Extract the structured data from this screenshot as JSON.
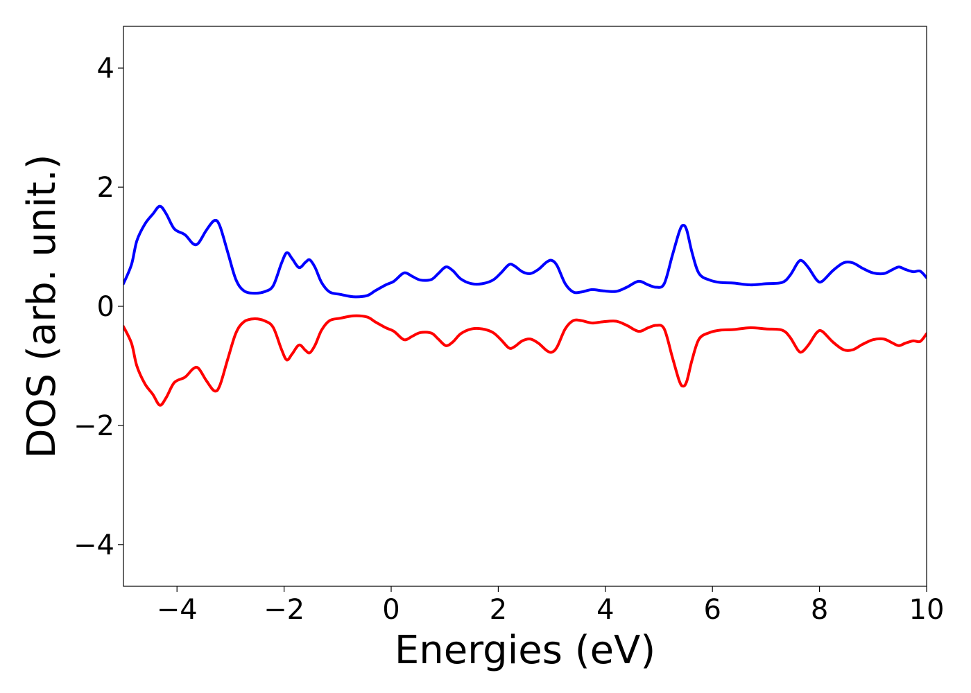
{
  "chart_data": {
    "type": "line",
    "title": "",
    "xlabel": "Energies (eV)",
    "ylabel": "DOS (arb. unit.)",
    "xlim": [
      -5,
      10
    ],
    "ylim": [
      -4.7,
      4.7
    ],
    "x_ticks": [
      -4,
      -2,
      0,
      2,
      4,
      6,
      8,
      10
    ],
    "x_tick_labels": [
      "−4",
      "−2",
      "0",
      "2",
      "4",
      "6",
      "8",
      "10"
    ],
    "y_ticks": [
      -4,
      -2,
      0,
      2,
      4
    ],
    "y_tick_labels": [
      "−4",
      "−2",
      "0",
      "2",
      "4"
    ],
    "grid": false,
    "legend": "none",
    "series": [
      {
        "color": "#0000ff",
        "points": [
          [
            -5.0,
            0.38
          ],
          [
            -4.85,
            0.7
          ],
          [
            -4.75,
            1.1
          ],
          [
            -4.6,
            1.38
          ],
          [
            -4.45,
            1.55
          ],
          [
            -4.32,
            1.68
          ],
          [
            -4.2,
            1.55
          ],
          [
            -4.05,
            1.3
          ],
          [
            -3.85,
            1.2
          ],
          [
            -3.7,
            1.05
          ],
          [
            -3.6,
            1.06
          ],
          [
            -3.45,
            1.28
          ],
          [
            -3.3,
            1.44
          ],
          [
            -3.2,
            1.35
          ],
          [
            -3.05,
            0.9
          ],
          [
            -2.9,
            0.45
          ],
          [
            -2.75,
            0.26
          ],
          [
            -2.55,
            0.22
          ],
          [
            -2.35,
            0.25
          ],
          [
            -2.2,
            0.35
          ],
          [
            -2.05,
            0.72
          ],
          [
            -1.95,
            0.9
          ],
          [
            -1.85,
            0.8
          ],
          [
            -1.72,
            0.65
          ],
          [
            -1.6,
            0.74
          ],
          [
            -1.52,
            0.78
          ],
          [
            -1.42,
            0.65
          ],
          [
            -1.3,
            0.4
          ],
          [
            -1.15,
            0.24
          ],
          [
            -0.95,
            0.2
          ],
          [
            -0.7,
            0.16
          ],
          [
            -0.45,
            0.18
          ],
          [
            -0.3,
            0.26
          ],
          [
            -0.1,
            0.36
          ],
          [
            0.05,
            0.42
          ],
          [
            0.2,
            0.54
          ],
          [
            0.28,
            0.56
          ],
          [
            0.4,
            0.5
          ],
          [
            0.55,
            0.44
          ],
          [
            0.75,
            0.45
          ],
          [
            0.88,
            0.55
          ],
          [
            1.02,
            0.66
          ],
          [
            1.15,
            0.6
          ],
          [
            1.3,
            0.46
          ],
          [
            1.5,
            0.38
          ],
          [
            1.7,
            0.38
          ],
          [
            1.9,
            0.44
          ],
          [
            2.05,
            0.56
          ],
          [
            2.2,
            0.7
          ],
          [
            2.3,
            0.68
          ],
          [
            2.45,
            0.58
          ],
          [
            2.6,
            0.55
          ],
          [
            2.75,
            0.62
          ],
          [
            2.9,
            0.74
          ],
          [
            3.0,
            0.77
          ],
          [
            3.1,
            0.68
          ],
          [
            3.25,
            0.38
          ],
          [
            3.4,
            0.24
          ],
          [
            3.55,
            0.24
          ],
          [
            3.75,
            0.28
          ],
          [
            3.95,
            0.26
          ],
          [
            4.2,
            0.25
          ],
          [
            4.4,
            0.32
          ],
          [
            4.62,
            0.42
          ],
          [
            4.8,
            0.36
          ],
          [
            4.95,
            0.32
          ],
          [
            5.1,
            0.38
          ],
          [
            5.25,
            0.85
          ],
          [
            5.38,
            1.25
          ],
          [
            5.45,
            1.36
          ],
          [
            5.52,
            1.28
          ],
          [
            5.62,
            0.9
          ],
          [
            5.75,
            0.55
          ],
          [
            5.95,
            0.44
          ],
          [
            6.15,
            0.4
          ],
          [
            6.4,
            0.39
          ],
          [
            6.7,
            0.36
          ],
          [
            7.0,
            0.38
          ],
          [
            7.3,
            0.4
          ],
          [
            7.45,
            0.52
          ],
          [
            7.6,
            0.74
          ],
          [
            7.68,
            0.76
          ],
          [
            7.8,
            0.64
          ],
          [
            7.95,
            0.44
          ],
          [
            8.05,
            0.42
          ],
          [
            8.25,
            0.6
          ],
          [
            8.45,
            0.73
          ],
          [
            8.62,
            0.73
          ],
          [
            8.8,
            0.64
          ],
          [
            9.0,
            0.56
          ],
          [
            9.2,
            0.55
          ],
          [
            9.35,
            0.61
          ],
          [
            9.48,
            0.66
          ],
          [
            9.6,
            0.62
          ],
          [
            9.75,
            0.58
          ],
          [
            9.88,
            0.59
          ],
          [
            10.0,
            0.48
          ]
        ]
      },
      {
        "color": "#ff0000",
        "points": [
          [
            -5.0,
            -0.34
          ],
          [
            -4.85,
            -0.62
          ],
          [
            -4.75,
            -1.0
          ],
          [
            -4.6,
            -1.3
          ],
          [
            -4.45,
            -1.48
          ],
          [
            -4.32,
            -1.66
          ],
          [
            -4.2,
            -1.53
          ],
          [
            -4.05,
            -1.28
          ],
          [
            -3.85,
            -1.19
          ],
          [
            -3.7,
            -1.05
          ],
          [
            -3.6,
            -1.04
          ],
          [
            -3.45,
            -1.25
          ],
          [
            -3.3,
            -1.42
          ],
          [
            -3.2,
            -1.33
          ],
          [
            -3.05,
            -0.88
          ],
          [
            -2.9,
            -0.45
          ],
          [
            -2.75,
            -0.26
          ],
          [
            -2.55,
            -0.21
          ],
          [
            -2.35,
            -0.25
          ],
          [
            -2.2,
            -0.36
          ],
          [
            -2.05,
            -0.72
          ],
          [
            -1.95,
            -0.9
          ],
          [
            -1.85,
            -0.8
          ],
          [
            -1.72,
            -0.65
          ],
          [
            -1.6,
            -0.74
          ],
          [
            -1.52,
            -0.78
          ],
          [
            -1.42,
            -0.65
          ],
          [
            -1.3,
            -0.4
          ],
          [
            -1.15,
            -0.24
          ],
          [
            -0.95,
            -0.2
          ],
          [
            -0.7,
            -0.16
          ],
          [
            -0.45,
            -0.18
          ],
          [
            -0.3,
            -0.26
          ],
          [
            -0.1,
            -0.36
          ],
          [
            0.05,
            -0.42
          ],
          [
            0.2,
            -0.54
          ],
          [
            0.28,
            -0.56
          ],
          [
            0.4,
            -0.5
          ],
          [
            0.55,
            -0.44
          ],
          [
            0.75,
            -0.45
          ],
          [
            0.88,
            -0.55
          ],
          [
            1.02,
            -0.66
          ],
          [
            1.15,
            -0.6
          ],
          [
            1.3,
            -0.46
          ],
          [
            1.5,
            -0.38
          ],
          [
            1.7,
            -0.38
          ],
          [
            1.9,
            -0.44
          ],
          [
            2.05,
            -0.56
          ],
          [
            2.2,
            -0.7
          ],
          [
            2.3,
            -0.68
          ],
          [
            2.45,
            -0.58
          ],
          [
            2.6,
            -0.55
          ],
          [
            2.75,
            -0.62
          ],
          [
            2.9,
            -0.74
          ],
          [
            3.0,
            -0.77
          ],
          [
            3.1,
            -0.68
          ],
          [
            3.25,
            -0.38
          ],
          [
            3.4,
            -0.24
          ],
          [
            3.55,
            -0.24
          ],
          [
            3.75,
            -0.28
          ],
          [
            3.95,
            -0.26
          ],
          [
            4.2,
            -0.25
          ],
          [
            4.4,
            -0.32
          ],
          [
            4.62,
            -0.42
          ],
          [
            4.8,
            -0.36
          ],
          [
            4.95,
            -0.32
          ],
          [
            5.1,
            -0.38
          ],
          [
            5.25,
            -0.85
          ],
          [
            5.38,
            -1.25
          ],
          [
            5.45,
            -1.34
          ],
          [
            5.52,
            -1.26
          ],
          [
            5.62,
            -0.9
          ],
          [
            5.75,
            -0.55
          ],
          [
            5.95,
            -0.44
          ],
          [
            6.15,
            -0.4
          ],
          [
            6.4,
            -0.39
          ],
          [
            6.7,
            -0.36
          ],
          [
            7.0,
            -0.38
          ],
          [
            7.3,
            -0.4
          ],
          [
            7.45,
            -0.52
          ],
          [
            7.6,
            -0.74
          ],
          [
            7.68,
            -0.76
          ],
          [
            7.8,
            -0.64
          ],
          [
            7.95,
            -0.44
          ],
          [
            8.05,
            -0.42
          ],
          [
            8.25,
            -0.6
          ],
          [
            8.45,
            -0.73
          ],
          [
            8.62,
            -0.73
          ],
          [
            8.8,
            -0.64
          ],
          [
            9.0,
            -0.56
          ],
          [
            9.2,
            -0.55
          ],
          [
            9.35,
            -0.61
          ],
          [
            9.48,
            -0.66
          ],
          [
            9.6,
            -0.62
          ],
          [
            9.75,
            -0.58
          ],
          [
            9.88,
            -0.59
          ],
          [
            10.0,
            -0.46
          ]
        ]
      }
    ]
  }
}
